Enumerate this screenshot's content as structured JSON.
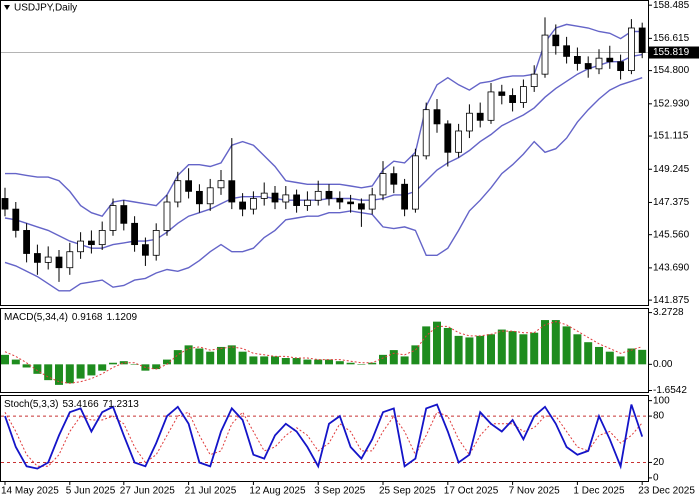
{
  "chart_data": [
    {
      "type": "candlestick",
      "title": "USDJPY,Daily",
      "categories": [
        "14 May 2025",
        null,
        null,
        null,
        null,
        null,
        "5 Jun 2025",
        null,
        null,
        null,
        null,
        "27 Jun 2025",
        null,
        null,
        null,
        null,
        null,
        "21 Jul 2025",
        null,
        null,
        null,
        null,
        null,
        "12 Aug 2025",
        null,
        null,
        null,
        null,
        null,
        "3 Sep 2025",
        null,
        null,
        null,
        null,
        null,
        "25 Sep 2025",
        null,
        null,
        null,
        null,
        null,
        "17 Oct 2025",
        null,
        null,
        null,
        null,
        null,
        "7 Nov 2025",
        null,
        null,
        null,
        null,
        null,
        "1 Dec 2025",
        null,
        null,
        null,
        null,
        null,
        "23 Dec 2025"
      ],
      "open": [
        147.6,
        147.0,
        145.8,
        144.5,
        144.0,
        144.3,
        143.7,
        144.6,
        145.2,
        145.0,
        145.8,
        147.2,
        146.2,
        145.0,
        144.4,
        145.8,
        147.4,
        148.6,
        148.0,
        147.3,
        148.2,
        148.6,
        147.4,
        147.0,
        147.6,
        147.9,
        147.4,
        147.8,
        147.2,
        147.5,
        148.0,
        147.6,
        147.4,
        147.3,
        147.0,
        147.8,
        149.0,
        148.4,
        147.0,
        150.0,
        152.6,
        151.8,
        150.2,
        151.4,
        152.4,
        152.0,
        153.6,
        153.4,
        153.0,
        153.9,
        154.6,
        156.8,
        156.2,
        155.6,
        155.2,
        154.9,
        155.5,
        155.3,
        154.8,
        157.2
      ],
      "high": [
        148.2,
        147.4,
        146.2,
        145.0,
        144.9,
        144.7,
        145.1,
        145.7,
        145.8,
        146.3,
        147.6,
        147.5,
        146.6,
        145.4,
        146.2,
        147.8,
        149.1,
        149.3,
        148.4,
        148.7,
        149.2,
        151.0,
        147.9,
        148.0,
        148.5,
        148.3,
        148.3,
        148.1,
        148.0,
        148.6,
        148.4,
        148.0,
        147.8,
        147.6,
        148.2,
        149.7,
        149.4,
        148.7,
        150.4,
        153.0,
        153.2,
        152.0,
        151.8,
        152.9,
        153.0,
        154.1,
        154.0,
        153.8,
        154.3,
        155.1,
        157.8,
        157.4,
        156.7,
        156.1,
        155.6,
        156.0,
        156.2,
        155.7,
        157.7,
        157.5
      ],
      "low": [
        146.6,
        145.4,
        144.0,
        143.3,
        143.6,
        142.9,
        143.3,
        144.2,
        144.5,
        144.7,
        145.5,
        145.8,
        144.6,
        143.8,
        144.1,
        145.5,
        147.1,
        147.6,
        146.8,
        146.9,
        147.8,
        147.0,
        146.6,
        146.7,
        147.2,
        147.0,
        147.0,
        146.8,
        146.9,
        147.2,
        147.2,
        147.0,
        146.8,
        146.0,
        146.7,
        147.5,
        147.9,
        146.6,
        146.8,
        149.8,
        151.3,
        149.4,
        149.9,
        151.0,
        151.6,
        151.8,
        152.9,
        152.5,
        152.7,
        153.6,
        154.4,
        155.7,
        155.2,
        154.8,
        154.4,
        154.6,
        154.9,
        154.3,
        154.6,
        155.5
      ],
      "close": [
        147.0,
        145.8,
        144.5,
        144.0,
        144.3,
        143.7,
        144.6,
        145.2,
        145.0,
        145.8,
        147.2,
        146.2,
        145.0,
        144.4,
        145.8,
        147.4,
        148.6,
        148.0,
        147.3,
        148.2,
        148.6,
        147.4,
        147.0,
        147.6,
        147.9,
        147.4,
        147.8,
        147.2,
        147.5,
        148.0,
        147.6,
        147.4,
        147.3,
        147.0,
        147.8,
        149.0,
        148.4,
        147.0,
        150.0,
        152.6,
        151.8,
        150.2,
        151.4,
        152.4,
        152.0,
        153.6,
        153.4,
        153.0,
        153.9,
        154.6,
        156.8,
        156.2,
        155.6,
        155.2,
        154.9,
        155.5,
        155.3,
        154.8,
        157.2,
        155.819
      ],
      "upper_band": [
        149.0,
        149.0,
        148.9,
        148.8,
        148.8,
        148.6,
        148.0,
        147.2,
        146.8,
        146.6,
        147.4,
        147.5,
        147.4,
        147.3,
        147.2,
        147.8,
        148.9,
        149.5,
        149.5,
        149.4,
        149.6,
        150.6,
        150.8,
        150.6,
        150.0,
        149.4,
        148.6,
        148.5,
        148.4,
        148.4,
        148.4,
        148.4,
        148.3,
        148.2,
        148.3,
        149.2,
        149.7,
        149.6,
        150.2,
        152.8,
        154.0,
        154.4,
        154.0,
        153.7,
        154.1,
        154.2,
        154.4,
        154.5,
        154.5,
        154.6,
        156.4,
        157.2,
        157.4,
        157.3,
        157.2,
        157.0,
        156.9,
        156.6,
        157.0,
        157.0
      ],
      "middle_band": [
        146.5,
        146.4,
        146.2,
        146.0,
        145.8,
        145.5,
        145.2,
        145.0,
        144.8,
        144.8,
        145.0,
        145.1,
        145.2,
        145.2,
        145.3,
        145.7,
        146.2,
        146.6,
        146.8,
        147.0,
        147.3,
        147.6,
        147.7,
        147.7,
        147.7,
        147.6,
        147.5,
        147.5,
        147.5,
        147.5,
        147.6,
        147.6,
        147.6,
        147.5,
        147.5,
        147.6,
        147.8,
        147.8,
        148.0,
        148.6,
        149.2,
        149.6,
        149.9,
        150.3,
        150.8,
        151.2,
        151.7,
        152.0,
        152.3,
        152.7,
        153.3,
        153.8,
        154.2,
        154.6,
        154.9,
        155.1,
        155.3,
        155.3,
        155.6,
        155.7
      ],
      "lower_band": [
        144.0,
        143.8,
        143.5,
        143.2,
        142.8,
        142.4,
        142.4,
        142.8,
        142.9,
        143.0,
        142.6,
        142.7,
        143.0,
        143.1,
        143.4,
        143.6,
        143.5,
        143.7,
        144.1,
        144.6,
        145.0,
        144.6,
        144.6,
        144.8,
        145.4,
        145.8,
        146.4,
        146.5,
        146.6,
        146.6,
        146.8,
        146.8,
        146.9,
        146.8,
        146.7,
        146.0,
        145.9,
        146.0,
        145.8,
        144.4,
        144.4,
        144.8,
        145.8,
        146.9,
        147.5,
        148.2,
        149.0,
        149.5,
        150.1,
        150.8,
        150.2,
        150.4,
        151.0,
        151.9,
        152.6,
        153.2,
        153.7,
        154.0,
        154.2,
        154.4
      ],
      "band_color": "#6464c8",
      "last_price": 155.819,
      "ylim": [
        141.6,
        158.72
      ],
      "yticks": [
        158.485,
        156.615,
        {
          "value": 154.8,
          "label": "154.800"
        },
        {
          "value": 152.93,
          "label": "152.930"
        },
        151.115,
        149.245,
        147.375,
        {
          "value": 145.56,
          "label": "145.560"
        },
        {
          "value": 143.69,
          "label": "143.690"
        },
        141.875
      ]
    },
    {
      "type": "macd",
      "title": "MACD(5,34,4)",
      "label_values": [
        0.9168,
        1.1209
      ],
      "histogram": [
        0.6,
        0.3,
        -0.2,
        -0.6,
        -1.0,
        -1.3,
        -1.2,
        -0.9,
        -0.7,
        -0.4,
        0.1,
        0.2,
        0.0,
        -0.4,
        -0.3,
        0.3,
        0.9,
        1.2,
        1.0,
        0.8,
        1.1,
        1.2,
        0.8,
        0.5,
        0.5,
        0.5,
        0.4,
        0.4,
        0.3,
        0.3,
        0.3,
        0.2,
        0.1,
        0.0,
        0.1,
        0.6,
        0.9,
        0.5,
        1.2,
        2.4,
        2.7,
        2.3,
        1.8,
        1.7,
        1.8,
        1.9,
        2.2,
        2.1,
        1.9,
        2.0,
        2.8,
        2.8,
        2.4,
        1.9,
        1.4,
        1.1,
        0.8,
        0.5,
        1.0,
        0.9168
      ],
      "signal": [
        0.8,
        0.5,
        0.1,
        -0.4,
        -0.8,
        -1.1,
        -1.2,
        -1.1,
        -0.9,
        -0.6,
        -0.2,
        0.1,
        0.1,
        -0.2,
        -0.3,
        0.0,
        0.6,
        1.0,
        1.1,
        0.9,
        1.0,
        1.1,
        1.0,
        0.7,
        0.6,
        0.5,
        0.5,
        0.4,
        0.4,
        0.3,
        0.3,
        0.3,
        0.2,
        0.1,
        0.1,
        0.4,
        0.7,
        0.6,
        0.9,
        1.8,
        2.4,
        2.4,
        2.0,
        1.8,
        1.8,
        1.9,
        2.1,
        2.1,
        2.0,
        2.0,
        2.5,
        2.7,
        2.5,
        2.1,
        1.7,
        1.3,
        1.0,
        0.7,
        0.9,
        1.1209
      ],
      "histogram_color": "#1e8c1e",
      "signal_color": "#e03c3c",
      "ylim": [
        -1.75,
        3.5
      ],
      "yticks": [
        3.2728,
        {
          "value": 0,
          "label": "0.00"
        },
        -1.6542
      ]
    },
    {
      "type": "stochastic",
      "title": "Stoch(5,3,3)",
      "label_values": [
        53.4166,
        71.2313
      ],
      "k": [
        80,
        40,
        15,
        12,
        20,
        55,
        85,
        90,
        60,
        85,
        92,
        55,
        20,
        15,
        45,
        80,
        92,
        70,
        20,
        15,
        60,
        90,
        75,
        30,
        25,
        55,
        70,
        60,
        40,
        15,
        70,
        80,
        40,
        25,
        50,
        85,
        90,
        15,
        25,
        90,
        95,
        60,
        20,
        30,
        85,
        70,
        60,
        75,
        50,
        80,
        92,
        70,
        40,
        30,
        35,
        80,
        50,
        15,
        95,
        53.4166
      ],
      "d": [
        85,
        60,
        30,
        15,
        15,
        30,
        60,
        80,
        75,
        75,
        80,
        70,
        40,
        20,
        30,
        55,
        80,
        85,
        55,
        30,
        35,
        70,
        85,
        60,
        35,
        40,
        55,
        65,
        55,
        35,
        45,
        70,
        60,
        35,
        35,
        60,
        80,
        60,
        30,
        55,
        85,
        80,
        50,
        30,
        55,
        70,
        70,
        70,
        60,
        65,
        80,
        80,
        60,
        40,
        35,
        55,
        60,
        45,
        55,
        71.2313
      ],
      "k_color": "#1414c8",
      "d_color": "#e03c3c",
      "levels": [
        80,
        20
      ],
      "ylim": [
        -4,
        106
      ],
      "yticks": [
        100,
        80,
        20,
        0
      ]
    }
  ]
}
